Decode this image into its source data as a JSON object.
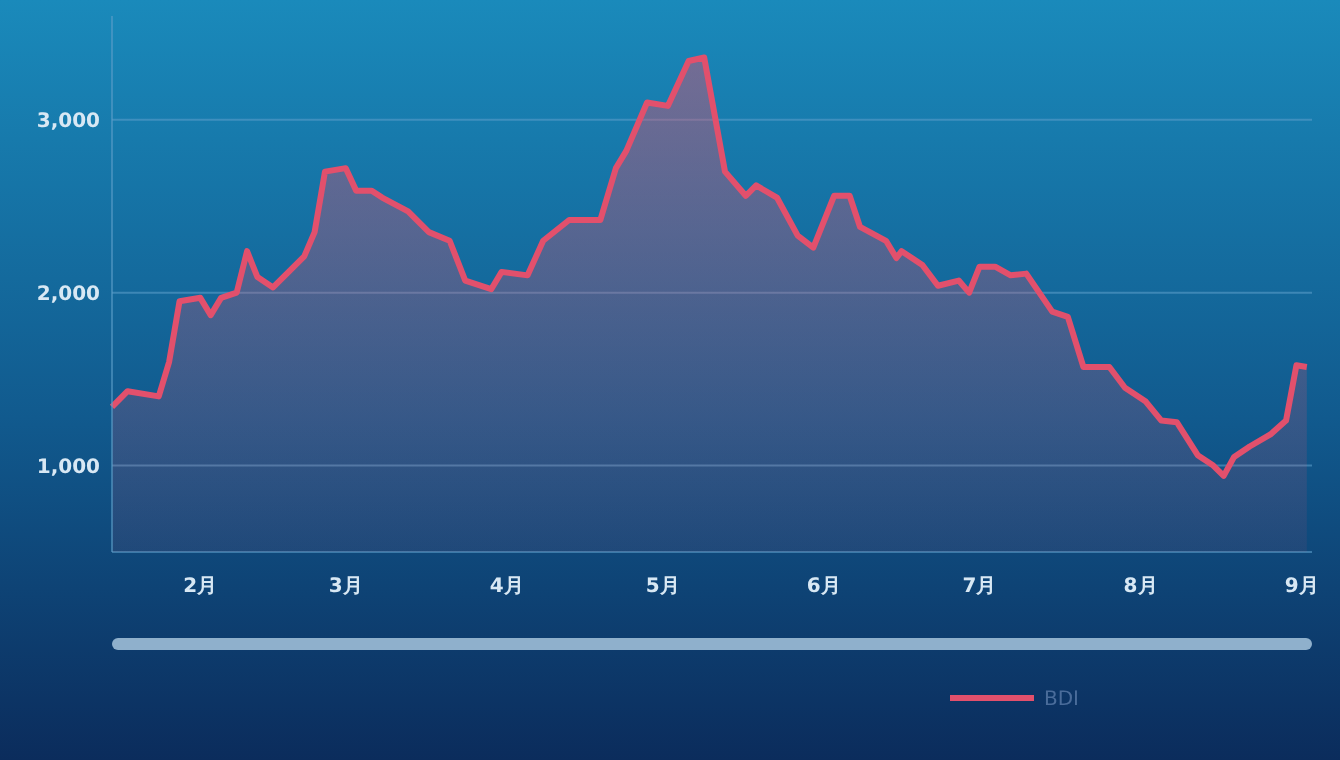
{
  "chart_data": {
    "type": "area",
    "xlim": [
      "--01-15",
      "--09-03"
    ],
    "ylim": [
      500,
      3600
    ],
    "xticks": [
      {
        "value": "--02-01",
        "label": "2月"
      },
      {
        "value": "--03-01",
        "label": "3月"
      },
      {
        "value": "--04-01",
        "label": "4月"
      },
      {
        "value": "--05-01",
        "label": "5月"
      },
      {
        "value": "--06-01",
        "label": "6月"
      },
      {
        "value": "--07-01",
        "label": "7月"
      },
      {
        "value": "--08-01",
        "label": "8月"
      },
      {
        "value": "--09-01",
        "label": "9月"
      }
    ],
    "yticks": [
      {
        "value": 500,
        "label": null
      },
      {
        "value": 1000,
        "label": "1,000"
      },
      {
        "value": 2000,
        "label": "2,000"
      },
      {
        "value": 3000,
        "label": "3,000"
      }
    ],
    "grid": "y",
    "legend": "bottom",
    "marker": "none",
    "line_style": "solid",
    "x": [
      "--01-15",
      "--01-18",
      "--01-24",
      "--01-26",
      "--01-28",
      "--02-01",
      "--02-03",
      "--02-05",
      "--02-08",
      "--02-10",
      "--02-12",
      "--02-15",
      "--02-18",
      "--02-21",
      "--02-23",
      "--02-25",
      "--03-01",
      "--03-03",
      "--03-06",
      "--03-08",
      "--03-13",
      "--03-17",
      "--03-21",
      "--03-24",
      "--03-29",
      "--03-31",
      "--04-05",
      "--04-08",
      "--04-13",
      "--04-19",
      "--04-22",
      "--04-24",
      "--04-28",
      "--05-02",
      "--05-06",
      "--05-09",
      "--05-13",
      "--05-17",
      "--05-19",
      "--05-23",
      "--05-27",
      "--05-30",
      "--06-03",
      "--06-06",
      "--06-08",
      "--06-13",
      "--06-15",
      "--06-16",
      "--06-20",
      "--06-23",
      "--06-27",
      "--06-29",
      "--07-01",
      "--07-04",
      "--07-07",
      "--07-10",
      "--07-15",
      "--07-18",
      "--07-21",
      "--07-26",
      "--07-29",
      "--08-02",
      "--08-05",
      "--08-08",
      "--08-12",
      "--08-15",
      "--08-17",
      "--08-19",
      "--08-22",
      "--08-26",
      "--08-29",
      "--08-31",
      "--09-02"
    ],
    "series": [
      {
        "name": "BDI",
        "color": "#e2506c",
        "values": [
          1340,
          1430,
          1400,
          1600,
          1950,
          1970,
          1870,
          1970,
          2000,
          2240,
          2090,
          2030,
          2120,
          2210,
          2350,
          2700,
          2720,
          2590,
          2590,
          2550,
          2470,
          2350,
          2300,
          2070,
          2020,
          2120,
          2100,
          2300,
          2420,
          2420,
          2720,
          2820,
          3100,
          3080,
          3340,
          3360,
          2700,
          2560,
          2620,
          2550,
          2330,
          2260,
          2560,
          2560,
          2380,
          2300,
          2200,
          2240,
          2160,
          2040,
          2070,
          2000,
          2150,
          2150,
          2100,
          2110,
          1890,
          1860,
          1570,
          1570,
          1450,
          1370,
          1260,
          1250,
          1060,
          1000,
          940,
          1050,
          1110,
          1180,
          1260,
          1580,
          1570
        ]
      }
    ]
  }
}
